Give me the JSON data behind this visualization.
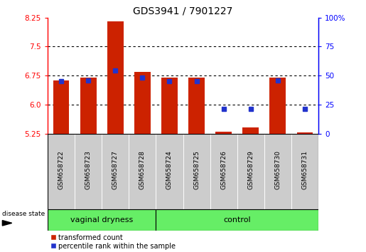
{
  "title": "GDS3941 / 7901227",
  "samples": [
    "GSM658722",
    "GSM658723",
    "GSM658727",
    "GSM658728",
    "GSM658724",
    "GSM658725",
    "GSM658726",
    "GSM658729",
    "GSM658730",
    "GSM658731"
  ],
  "bar_tops": [
    6.62,
    6.7,
    8.15,
    6.85,
    6.7,
    6.7,
    5.3,
    5.4,
    6.7,
    5.28
  ],
  "blue_vals": [
    6.615,
    6.625,
    6.875,
    6.7,
    6.615,
    6.6,
    5.895,
    5.895,
    6.63,
    5.885
  ],
  "ymin": 5.25,
  "ymax": 8.25,
  "yticks": [
    5.25,
    6.0,
    6.75,
    7.5,
    8.25
  ],
  "right_yticks": [
    0,
    25,
    50,
    75,
    100
  ],
  "bar_color": "#cc2200",
  "blue_color": "#2233cc",
  "bg_color": "#ffffff",
  "group1_label": "vaginal dryness",
  "group2_label": "control",
  "group1_count": 4,
  "group2_count": 6,
  "group_bar_color": "#66ee66",
  "legend_red_label": "transformed count",
  "legend_blue_label": "percentile rank within the sample",
  "bar_width": 0.6,
  "tick_bg_color": "#cccccc",
  "plot_box_color": "#ffffff"
}
